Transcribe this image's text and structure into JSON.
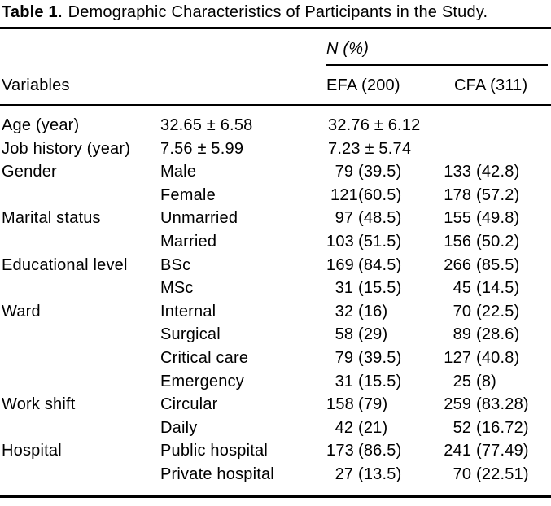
{
  "title": {
    "label": "Table 1.",
    "text": "Demographic Characteristics of Participants in the Study."
  },
  "colors": {
    "text": "#000000",
    "background": "#ffffff",
    "rule": "#000000"
  },
  "table": {
    "group_header": "N (%)",
    "columns": {
      "variables": "Variables",
      "efa": "EFA (200)",
      "cfa": "CFA (311)"
    },
    "rows": [
      {
        "variable": "Age (year)",
        "category": "32.65 ± 6.58",
        "efa": "32.76 ± 6.12",
        "cfa": ""
      },
      {
        "variable": "Job history (year)",
        "category": "7.56 ± 5.99",
        "efa": "7.23 ± 5.74",
        "cfa": ""
      },
      {
        "variable": "Gender",
        "category": "Male",
        "efa": "79 (39.5)",
        "cfa": "133 (42.8)"
      },
      {
        "variable": "",
        "category": "Female",
        "efa": "121(60.5)",
        "cfa": "178 (57.2)"
      },
      {
        "variable": "Marital status",
        "category": "Unmarried",
        "efa": "97 (48.5)",
        "cfa": "155 (49.8)"
      },
      {
        "variable": "",
        "category": "Married",
        "efa": "103 (51.5)",
        "cfa": "156 (50.2)"
      },
      {
        "variable": "Educational level",
        "category": "BSc",
        "efa": "169 (84.5)",
        "cfa": "266 (85.5)"
      },
      {
        "variable": "",
        "category": "MSc",
        "efa": "31 (15.5)",
        "cfa": "45 (14.5)"
      },
      {
        "variable": "Ward",
        "category": "Internal",
        "efa": "32 (16)",
        "cfa": "70 (22.5)"
      },
      {
        "variable": "",
        "category": "Surgical",
        "efa": "58 (29)",
        "cfa": "89 (28.6)"
      },
      {
        "variable": "",
        "category": "Critical care",
        "efa": "79 (39.5)",
        "cfa": "127 (40.8)"
      },
      {
        "variable": "",
        "category": "Emergency",
        "efa": "31 (15.5)",
        "cfa": "25 (8)"
      },
      {
        "variable": "Work shift",
        "category": "Circular",
        "efa": "158 (79)",
        "cfa": "259 (83.28)"
      },
      {
        "variable": "",
        "category": "Daily",
        "efa": "42 (21)",
        "cfa": "52 (16.72)"
      },
      {
        "variable": "Hospital",
        "category": "Public hospital",
        "efa": "173 (86.5)",
        "cfa": "241 (77.49)"
      },
      {
        "variable": "",
        "category": "Private hospital",
        "efa": "27 (13.5)",
        "cfa": "70 (22.51)"
      }
    ]
  }
}
